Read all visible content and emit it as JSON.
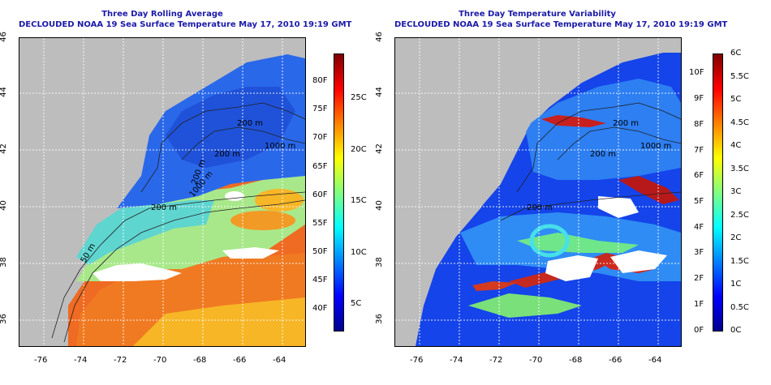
{
  "left_panel": {
    "title_line1": "Three Day Rolling Average",
    "title_line2": "DECLOUDED NOAA 19 Sea Surface Temperature May 17, 2010 19:19 GMT",
    "lon_ticks": [
      "-76",
      "-74",
      "-72",
      "-70",
      "-68",
      "-66",
      "-64"
    ],
    "lat_ticks": [
      "36",
      "38",
      "40",
      "42",
      "44",
      "46"
    ],
    "contour_labels": [
      "50 m",
      "200 m",
      "200 m",
      "200 m",
      "200 m",
      "1000 m",
      "1000 m"
    ],
    "colorbar": {
      "fahrenheit": [
        "40F",
        "45F",
        "50F",
        "55F",
        "60F",
        "65F",
        "70F",
        "75F",
        "80F"
      ],
      "celsius": [
        "5C",
        "10C",
        "15C",
        "20C",
        "25C"
      ]
    }
  },
  "right_panel": {
    "title_line1": "Three Day Temperature Variability",
    "title_line2": "DECLOUDED NOAA 19 Sea Surface Temperature May 17, 2010 19:19 GMT",
    "lon_ticks": [
      "-76",
      "-74",
      "-72",
      "-70",
      "-68",
      "-66",
      "-64"
    ],
    "lat_ticks": [
      "36",
      "38",
      "40",
      "42",
      "44",
      "46"
    ],
    "contour_labels": [
      "200 m",
      "200 m",
      "200 m",
      "1000 m"
    ],
    "colorbar": {
      "fahrenheit": [
        "0F",
        "1F",
        "2F",
        "3F",
        "4F",
        "5F",
        "6F",
        "7F",
        "8F",
        "9F",
        "10F"
      ],
      "celsius": [
        "0C",
        "0.5C",
        "1C",
        "1.5C",
        "2C",
        "2.5C",
        "3C",
        "3.5C",
        "4C",
        "4.5C",
        "5C",
        "5.5C",
        "6C"
      ]
    }
  },
  "colors": {
    "land": "#bdbdbd",
    "cloud": "#ffffff",
    "title": "#1a1aa8"
  }
}
